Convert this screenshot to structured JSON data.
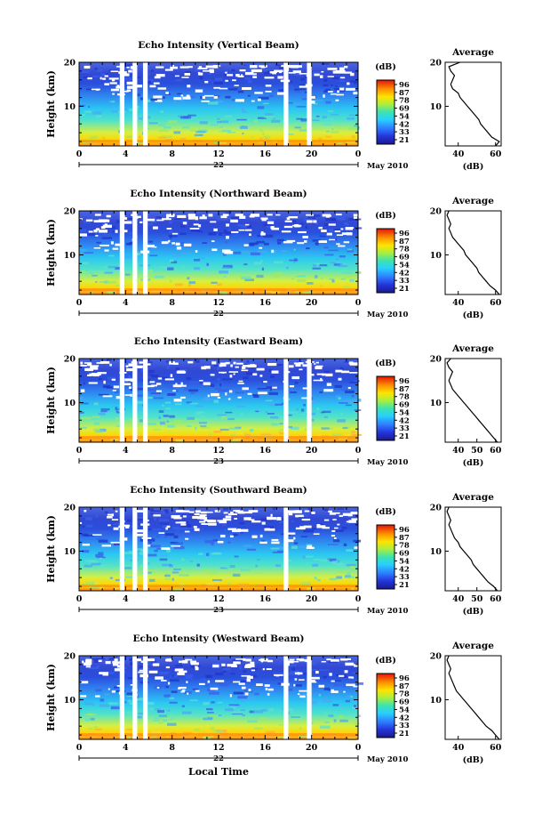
{
  "shared": {
    "height_axis_label": "Height (km)",
    "avg_title": "Average",
    "avg_xlabel": "(dB)",
    "colorbar_unit": "(dB)",
    "colorbar_ticks": [
      "96",
      "87",
      "78",
      "69",
      "54",
      "42",
      "33",
      "21"
    ],
    "month_label": "May 2010",
    "local_time_label": "Local Time",
    "time_ticks": [
      "0",
      "4",
      "8",
      "12",
      "16",
      "20",
      "0"
    ],
    "height_ticks": [
      "20",
      "10"
    ]
  },
  "chart_data": [
    {
      "type": "heatmap",
      "title": "Echo Intensity (Vertical Beam)",
      "date_label": "22",
      "ylabel": "Height (km)",
      "xlabel": "",
      "ylim": [
        1,
        20
      ],
      "xlim": [
        0,
        24
      ],
      "colorbar": {
        "unit": "(dB)",
        "ticks": [
          96,
          87,
          78,
          69,
          54,
          42,
          33,
          21
        ]
      },
      "gaps_hours": [
        [
          3.5,
          3.9
        ],
        [
          4.6,
          5.0
        ],
        [
          5.5,
          5.9
        ],
        [
          17.6,
          18.0
        ],
        [
          19.6,
          20.0
        ]
      ],
      "average_profile": {
        "title": "Average",
        "xlabel": "(dB)",
        "xticks": [
          40,
          60
        ],
        "xlim": [
          33,
          63
        ],
        "height": [
          1,
          2,
          3,
          4,
          5,
          6,
          7,
          8,
          9,
          10,
          11,
          12,
          13,
          14,
          15,
          16,
          17,
          18,
          19,
          20
        ],
        "value": [
          60,
          62,
          58,
          56,
          54,
          52,
          51,
          49,
          47,
          45,
          43,
          41,
          40,
          37,
          36,
          37,
          38,
          36,
          35,
          41
        ]
      }
    },
    {
      "type": "heatmap",
      "title": "Echo Intensity (Northward Beam)",
      "date_label": "22",
      "ylabel": "Height (km)",
      "xlabel": "",
      "ylim": [
        1,
        20
      ],
      "xlim": [
        0,
        24
      ],
      "colorbar": {
        "unit": "(dB)",
        "ticks": [
          96,
          87,
          78,
          69,
          54,
          42,
          33,
          21
        ]
      },
      "gaps_hours": [
        [
          3.5,
          3.9
        ],
        [
          4.6,
          5.0
        ],
        [
          5.5,
          5.9
        ]
      ],
      "average_profile": {
        "title": "Average",
        "xlabel": "(dB)",
        "xticks": [
          40,
          60
        ],
        "xlim": [
          33,
          63
        ],
        "height": [
          1,
          2,
          3,
          4,
          5,
          6,
          7,
          8,
          9,
          10,
          11,
          12,
          13,
          14,
          15,
          16,
          17,
          18,
          19,
          20
        ],
        "value": [
          62,
          60,
          57,
          55,
          53,
          51,
          50,
          48,
          46,
          44,
          43,
          41,
          39,
          37,
          36,
          35,
          36,
          35,
          34,
          35
        ]
      }
    },
    {
      "type": "heatmap",
      "title": "Echo Intensity (Eastward Beam)",
      "date_label": "23",
      "ylabel": "Height (km)",
      "xlabel": "",
      "ylim": [
        1,
        20
      ],
      "xlim": [
        0,
        24
      ],
      "colorbar": {
        "unit": "(dB)",
        "ticks": [
          96,
          87,
          78,
          69,
          54,
          42,
          33,
          21
        ]
      },
      "gaps_hours": [
        [
          3.5,
          3.9
        ],
        [
          4.6,
          5.0
        ],
        [
          5.5,
          5.9
        ],
        [
          17.6,
          18.0
        ],
        [
          19.6,
          20.0
        ]
      ],
      "average_profile": {
        "title": "Average",
        "xlabel": "(dB)",
        "xticks": [
          40,
          50,
          60
        ],
        "xlim": [
          33,
          63
        ],
        "height": [
          1,
          2,
          3,
          4,
          5,
          6,
          7,
          8,
          9,
          10,
          11,
          12,
          13,
          14,
          15,
          16,
          17,
          18,
          19,
          20
        ],
        "value": [
          61,
          59,
          57,
          55,
          53,
          51,
          49,
          47,
          45,
          43,
          41,
          39,
          37,
          36,
          35,
          36,
          37,
          35,
          34,
          36
        ]
      }
    },
    {
      "type": "heatmap",
      "title": "Echo Intensity (Southward Beam)",
      "date_label": "23",
      "ylabel": "Height (km)",
      "xlabel": "",
      "ylim": [
        1,
        20
      ],
      "xlim": [
        0,
        24
      ],
      "colorbar": {
        "unit": "(dB)",
        "ticks": [
          96,
          87,
          78,
          69,
          54,
          42,
          33,
          21
        ]
      },
      "gaps_hours": [
        [
          3.5,
          3.9
        ],
        [
          4.6,
          5.0
        ],
        [
          5.5,
          5.9
        ],
        [
          17.6,
          18.0
        ]
      ],
      "average_profile": {
        "title": "Average",
        "xlabel": "(dB)",
        "xticks": [
          40,
          50,
          60
        ],
        "xlim": [
          33,
          63
        ],
        "height": [
          1,
          2,
          3,
          4,
          5,
          6,
          7,
          8,
          9,
          10,
          11,
          12,
          13,
          14,
          15,
          16,
          17,
          18,
          19,
          20
        ],
        "value": [
          61,
          59,
          56,
          54,
          52,
          50,
          48,
          47,
          45,
          43,
          41,
          40,
          38,
          37,
          36,
          35,
          36,
          35,
          34,
          35
        ]
      }
    },
    {
      "type": "heatmap",
      "title": "Echo Intensity (Westward Beam)",
      "date_label": "22",
      "ylabel": "Height (km)",
      "xlabel": "Local Time",
      "ylim": [
        1,
        20
      ],
      "xlim": [
        0,
        24
      ],
      "colorbar": {
        "unit": "(dB)",
        "ticks": [
          96,
          87,
          78,
          69,
          54,
          42,
          33,
          21
        ]
      },
      "gaps_hours": [
        [
          3.5,
          3.9
        ],
        [
          4.6,
          5.0
        ],
        [
          5.5,
          5.9
        ],
        [
          17.6,
          18.0
        ],
        [
          19.6,
          20.0
        ]
      ],
      "average_profile": {
        "title": "Average",
        "xlabel": "(dB)",
        "xticks": [
          40,
          60
        ],
        "xlim": [
          33,
          63
        ],
        "height": [
          1,
          2,
          3,
          4,
          5,
          6,
          7,
          8,
          9,
          10,
          11,
          12,
          13,
          14,
          15,
          16,
          17,
          18,
          19,
          20
        ],
        "value": [
          62,
          60,
          58,
          55,
          53,
          51,
          49,
          47,
          45,
          43,
          41,
          39,
          38,
          37,
          36,
          35,
          36,
          35,
          34,
          35
        ]
      }
    }
  ]
}
